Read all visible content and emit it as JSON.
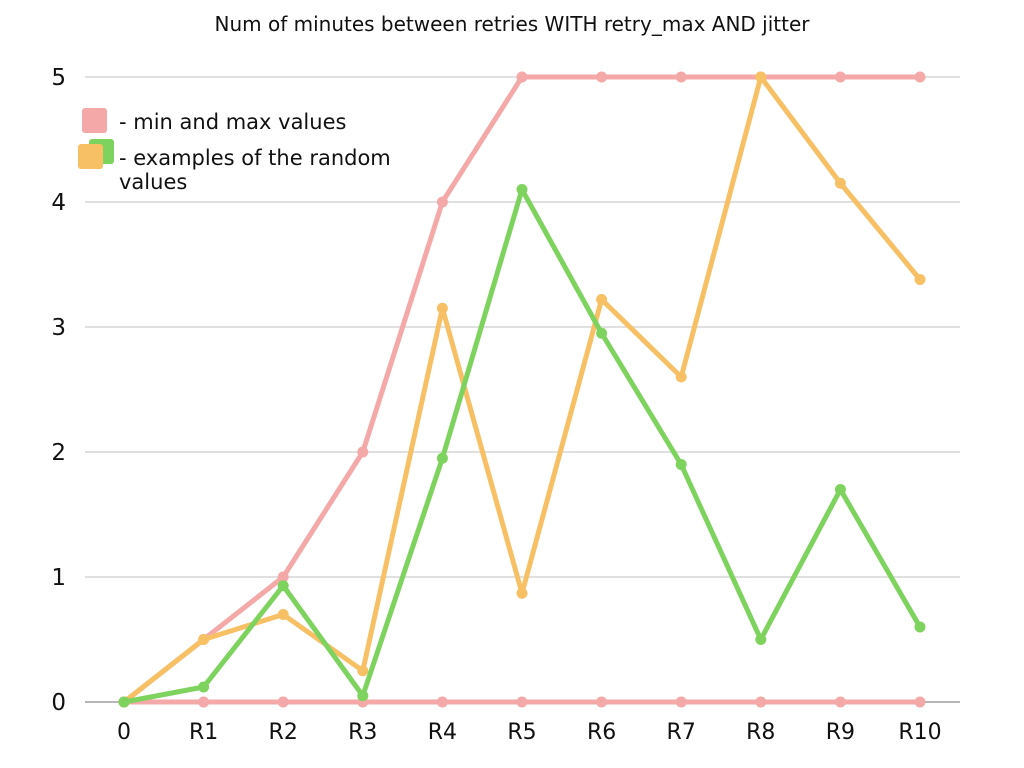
{
  "chart_data": {
    "type": "line",
    "title": "Num of minutes between retries WITH retry_max AND jitter",
    "xlabel": "",
    "ylabel": "",
    "categories": [
      "0",
      "R1",
      "R2",
      "R3",
      "R4",
      "R5",
      "R6",
      "R7",
      "R8",
      "R9",
      "R10"
    ],
    "ylim": [
      0,
      5
    ],
    "yticks": [
      0,
      1,
      2,
      3,
      4,
      5
    ],
    "grid": true,
    "legend_position": "top-left",
    "series": [
      {
        "color": "#f4a9a8",
        "values": [
          0,
          0.5,
          1,
          2,
          4,
          5,
          5,
          5,
          5,
          5,
          5
        ]
      },
      {
        "color": "#f4a9a8",
        "values": [
          0,
          0,
          0,
          0,
          0,
          0,
          0,
          0,
          0,
          0,
          0
        ]
      },
      {
        "color": "#f8c065",
        "values": [
          0,
          0.5,
          0.7,
          0.25,
          3.15,
          0.87,
          3.22,
          2.6,
          5,
          4.15,
          3.38
        ]
      },
      {
        "color": "#7ed35e",
        "values": [
          0,
          0.12,
          0.93,
          0.05,
          1.95,
          4.1,
          2.95,
          1.9,
          0.5,
          1.7,
          0.6
        ]
      }
    ],
    "legend": [
      {
        "text": "- min and max values",
        "colors": [
          "#f4a9a8"
        ]
      },
      {
        "text_lines": [
          "- examples of the random",
          "values"
        ],
        "colors": [
          "#7ed35e",
          "#f8c065"
        ]
      }
    ]
  }
}
